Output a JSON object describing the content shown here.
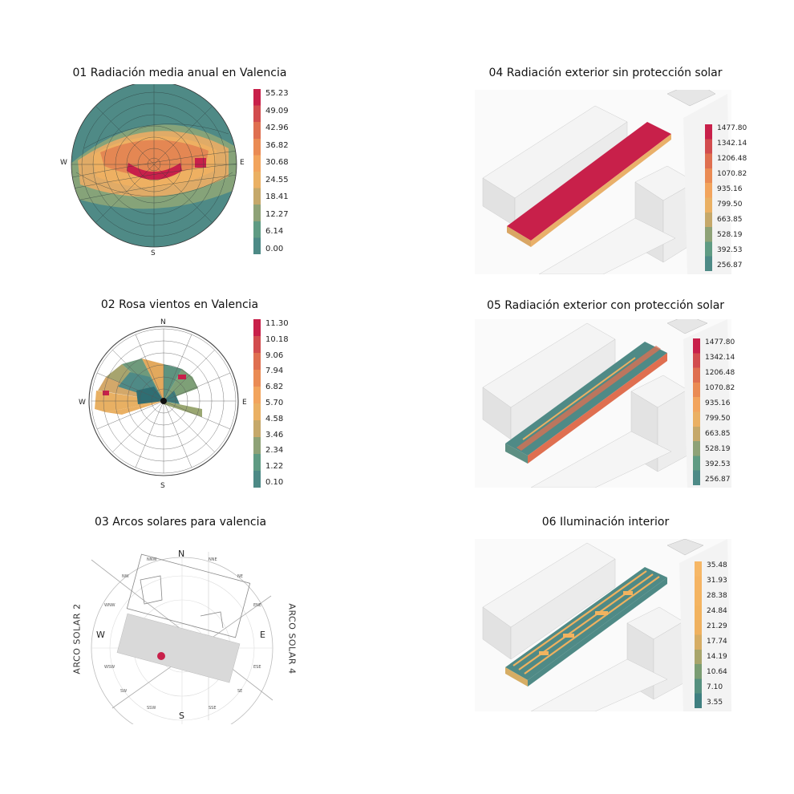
{
  "colors": {
    "scale": [
      "#4d8a86",
      "#5f9b83",
      "#8ea277",
      "#c5a86a",
      "#eab063",
      "#f2a45d",
      "#ea8b54",
      "#df6f50",
      "#d24c4e",
      "#c8204a"
    ],
    "illum_scale": [
      "#3f7f80",
      "#55907f",
      "#7a9d73",
      "#a8a56b",
      "#d6ad64",
      "#efb15f",
      "#f2b35f",
      "#f4b461",
      "#f5b463",
      "#f6b766"
    ],
    "accent": "#c8204a"
  },
  "panels": {
    "p01": {
      "title": "01 Radiación media anual en Valencia",
      "compass": {
        "w": "W",
        "e": "E",
        "s": "S"
      },
      "legend": [
        "55.23",
        "49.09",
        "42.96",
        "36.82",
        "30.68",
        "24.55",
        "18.41",
        "12.27",
        "6.14",
        "0.00"
      ]
    },
    "p02": {
      "title": "02 Rosa vientos en Valencia",
      "compass": {
        "n": "N",
        "w": "W",
        "e": "E",
        "s": "S"
      },
      "legend": [
        "11.30",
        "10.18",
        "9.06",
        "7.94",
        "6.82",
        "5.70",
        "4.58",
        "3.46",
        "2.34",
        "1.22",
        "0.10"
      ]
    },
    "p03": {
      "title": "03 Arcos solares para valencia",
      "compass": {
        "n": "N",
        "w": "W",
        "e": "E",
        "s": "S"
      },
      "directions": [
        "NNW",
        "NNE",
        "NW",
        "NE",
        "WNW",
        "ENE",
        "WSW",
        "ESE",
        "SW",
        "SE",
        "SSW",
        "SSE"
      ],
      "arco_left": "ARCO SOLAR 2",
      "arco_right": "ARCO SOLAR 4"
    },
    "p04": {
      "title": "04 Radiación exterior sin protección solar",
      "legend": [
        "1477.80",
        "1342.14",
        "1206.48",
        "1070.82",
        "935.16",
        "799.50",
        "663.85",
        "528.19",
        "392.53",
        "256.87"
      ]
    },
    "p05": {
      "title": "05 Radiación exterior con protección solar",
      "legend": [
        "1477.80",
        "1342.14",
        "1206.48",
        "1070.82",
        "935.16",
        "799.50",
        "663.85",
        "528.19",
        "392.53",
        "256.87"
      ]
    },
    "p06": {
      "title": "06 Iluminación interior",
      "legend": [
        "35.48",
        "31.93",
        "28.38",
        "24.84",
        "21.29",
        "17.74",
        "14.19",
        "10.64",
        "7.10",
        "3.55"
      ]
    }
  }
}
